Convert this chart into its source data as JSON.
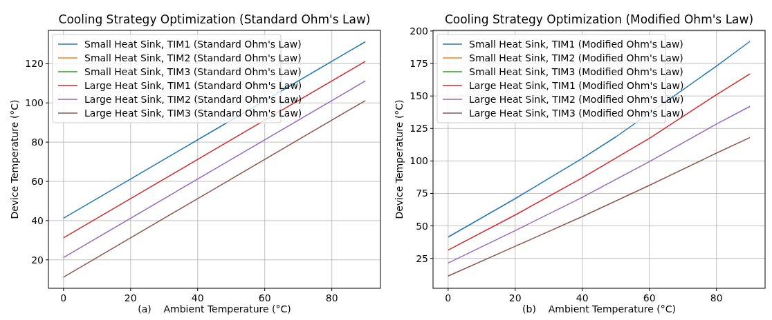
{
  "chart_data": [
    {
      "type": "line",
      "title": "Cooling Strategy Optimization (Standard Ohm's Law)",
      "xlabel": "(a)    Ambient Temperature (°C)",
      "ylabel": "Device Temperature (°C)",
      "xlim": [
        -4.5,
        94.5
      ],
      "ylim": [
        5.5,
        137
      ],
      "xticks": [
        0,
        20,
        40,
        60,
        80
      ],
      "yticks": [
        20,
        40,
        60,
        80,
        100,
        120
      ],
      "grid": true,
      "legend": "top left",
      "x": [
        0,
        45,
        90
      ],
      "series": [
        {
          "name": "Small Heat Sink, TIM1 (Standard Ohm's Law)",
          "color": "#1f77b4",
          "values": [
            41.2,
            86.2,
            131.2
          ]
        },
        {
          "name": "Small Heat Sink, TIM2 (Standard Ohm's Law)",
          "color": "#ff7f0e",
          "values": [
            null,
            null,
            null
          ]
        },
        {
          "name": "Small Heat Sink, TIM3 (Standard Ohm's Law)",
          "color": "#2ca02c",
          "values": [
            null,
            null,
            null
          ]
        },
        {
          "name": "Large Heat Sink, TIM1 (Standard Ohm's Law)",
          "color": "#d62728",
          "values": [
            31.2,
            76.2,
            121.2
          ]
        },
        {
          "name": "Large Heat Sink, TIM2 (Standard Ohm's Law)",
          "color": "#9467bd",
          "values": [
            21.2,
            66.2,
            111.2
          ]
        },
        {
          "name": "Large Heat Sink, TIM3 (Standard Ohm's Law)",
          "color": "#8c564b",
          "values": [
            11.2,
            56.2,
            101.2
          ]
        }
      ]
    },
    {
      "type": "line",
      "title": "Cooling Strategy Optimization (Modified Ohm's Law)",
      "xlabel": "(b)    Ambient Temperature (°C)",
      "ylabel": "Device Temperature (°C)",
      "xlim": [
        -4.5,
        94.5
      ],
      "ylim": [
        2,
        200.5
      ],
      "xticks": [
        0,
        20,
        40,
        60,
        80
      ],
      "yticks": [
        25,
        50,
        75,
        100,
        125,
        150,
        175,
        200
      ],
      "grid": true,
      "legend": "top left",
      "x": [
        0,
        20,
        40,
        60,
        80,
        90
      ],
      "series": [
        {
          "name": "Small Heat Sink, TIM1 (Modified Ohm's Law)",
          "color": "#1f77b4",
          "x": [
            0,
            20,
            40,
            50,
            80,
            90
          ],
          "values": [
            41.4,
            71,
            102,
            118.5,
            173,
            192
          ]
        },
        {
          "name": "Small Heat Sink, TIM2 (Modified Ohm's Law)",
          "color": "#ff7f0e",
          "values": [
            null,
            null,
            null,
            null,
            null,
            null
          ]
        },
        {
          "name": "Small Heat Sink, TIM3 (Modified Ohm's Law)",
          "color": "#2ca02c",
          "values": [
            null,
            null,
            null,
            null,
            null,
            null
          ]
        },
        {
          "name": "Large Heat Sink, TIM1 (Modified Ohm's Law)",
          "color": "#d62728",
          "values": [
            31.4,
            58.4,
            87,
            117.4,
            151,
            167
          ]
        },
        {
          "name": "Large Heat Sink, TIM2 (Modified Ohm's Law)",
          "color": "#9467bd",
          "values": [
            21.4,
            46.4,
            72,
            99.5,
            128.4,
            142
          ]
        },
        {
          "name": "Large Heat Sink, TIM3 (Modified Ohm's Law)",
          "color": "#8c564b",
          "values": [
            11.4,
            34.3,
            57.2,
            81.2,
            106,
            118
          ]
        }
      ]
    }
  ]
}
